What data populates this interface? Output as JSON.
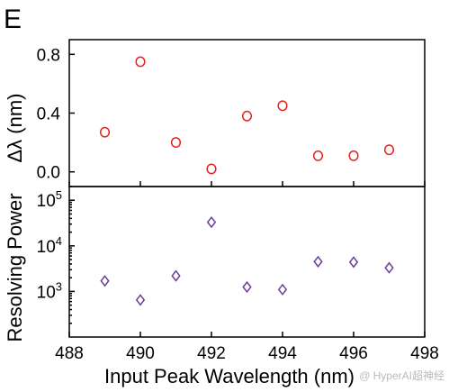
{
  "panel_label": "E",
  "watermark": "@ HyperAI超神经",
  "chart_data": [
    {
      "type": "scatter",
      "panel": "top",
      "ylabel": "Δλ (nm)",
      "ylim": [
        -0.1,
        0.9
      ],
      "yticks": [
        0.0,
        0.4,
        0.8
      ],
      "ytick_labels": [
        "0.0",
        "0.4",
        "0.8"
      ],
      "marker": "circle",
      "color": "#e8221c",
      "x": [
        489,
        490,
        491,
        492,
        493,
        494,
        495,
        496,
        497
      ],
      "y": [
        0.27,
        0.75,
        0.2,
        0.02,
        0.38,
        0.45,
        0.11,
        0.11,
        0.15
      ]
    },
    {
      "type": "scatter",
      "panel": "bottom",
      "ylabel": "Resolving Power",
      "yscale": "log",
      "ylim": [
        100,
        200000
      ],
      "yticks": [
        1000,
        10000,
        100000
      ],
      "ytick_labels": [
        [
          "10",
          "3"
        ],
        [
          "10",
          "4"
        ],
        [
          "10",
          "5"
        ]
      ],
      "marker": "diamond",
      "color": "#6a3d9a",
      "x": [
        489,
        490,
        491,
        492,
        493,
        494,
        495,
        496,
        497
      ],
      "y": [
        1700,
        650,
        2200,
        33000,
        1250,
        1100,
        4500,
        4400,
        3300
      ]
    }
  ],
  "shared_x": {
    "xlabel": "Input Peak Wavelength (nm)",
    "xlim": [
      488,
      498
    ],
    "xticks": [
      488,
      490,
      492,
      494,
      496,
      498
    ],
    "xtick_labels": [
      "488",
      "490",
      "492",
      "494",
      "496",
      "498"
    ]
  }
}
